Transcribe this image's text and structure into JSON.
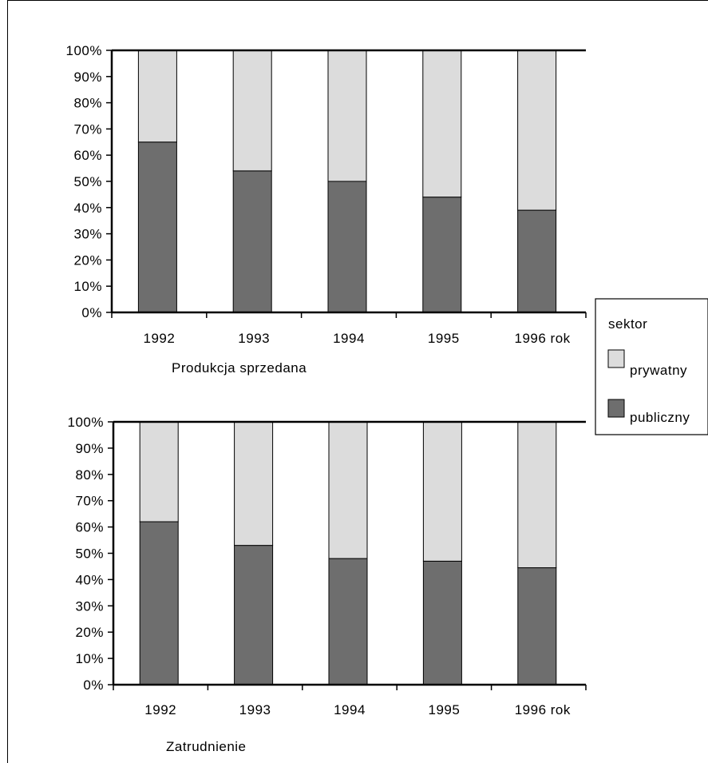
{
  "legend": {
    "title": "sektor",
    "items": [
      {
        "label": "prywatny",
        "color": "#dcdcdc"
      },
      {
        "label": "publiczny",
        "color": "#6e6e6e"
      }
    ]
  },
  "chart_data": [
    {
      "type": "bar",
      "stacked": true,
      "title": "Produkcja sprzedana",
      "categories": [
        "1992",
        "1993",
        "1994",
        "1995",
        "1996 rok"
      ],
      "series": [
        {
          "name": "publiczny",
          "values": [
            65,
            54,
            50,
            44,
            39
          ]
        },
        {
          "name": "prywatny",
          "values": [
            35,
            46,
            50,
            56,
            61
          ]
        }
      ],
      "yticks": [
        "0%",
        "10%",
        "20%",
        "30%",
        "40%",
        "50%",
        "60%",
        "70%",
        "80%",
        "90%",
        "100%"
      ],
      "ylim": [
        0,
        100
      ],
      "grid": false
    },
    {
      "type": "bar",
      "stacked": true,
      "title": "Zatrudnienie",
      "categories": [
        "1992",
        "1993",
        "1994",
        "1995",
        "1996 rok"
      ],
      "series": [
        {
          "name": "publiczny",
          "values": [
            62,
            53,
            48,
            47,
            44.5
          ]
        },
        {
          "name": "prywatny",
          "values": [
            38,
            47,
            52,
            53,
            55.5
          ]
        }
      ],
      "yticks": [
        "0%",
        "10%",
        "20%",
        "30%",
        "40%",
        "50%",
        "60%",
        "70%",
        "80%",
        "90%",
        "100%"
      ],
      "ylim": [
        0,
        100
      ],
      "grid": false
    }
  ]
}
